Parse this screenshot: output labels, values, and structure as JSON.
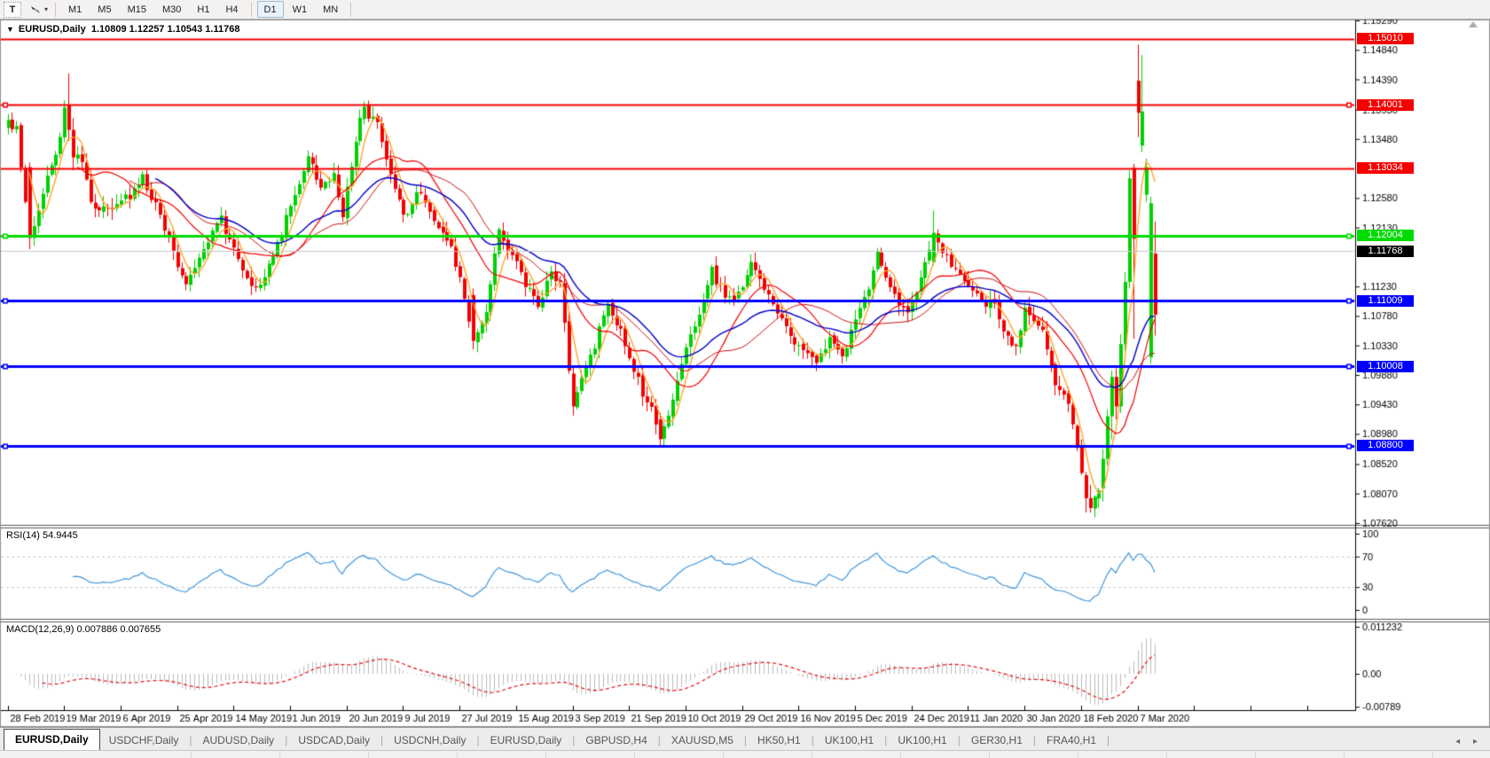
{
  "toolbar": {
    "text_tool_label": "T",
    "cursor_tool_icon": "cursor-mode-icon",
    "dropdown_caret": "▾",
    "timeframes": [
      "M1",
      "M5",
      "M15",
      "M30",
      "H1",
      "H4",
      "D1",
      "W1",
      "MN"
    ],
    "active_timeframe": "D1"
  },
  "header": {
    "dropdown_icon": "▼",
    "symbol_label": "EURUSD,Daily",
    "ohlc_label": "1.10809 1.12257 1.10543 1.11768"
  },
  "chart_data": {
    "type": "candlestick",
    "symbol": "EURUSD",
    "timeframe": "Daily",
    "last_bar": {
      "open": 1.10809,
      "high": 1.12257,
      "low": 1.10543,
      "close": 1.11768
    },
    "price_axis_ticks": [
      "1.15290",
      "1.14840",
      "1.14390",
      "1.13930",
      "1.13480",
      "1.12580",
      "1.12130",
      "1.11230",
      "1.10780",
      "1.10330",
      "1.09880",
      "1.09430",
      "1.08980",
      "1.08520",
      "1.08070",
      "1.07620"
    ],
    "price_axis_range": {
      "max": 1.1529,
      "min": 1.0762
    },
    "levels": [
      {
        "price": 1.1501,
        "label": "1.15010",
        "color": "#f40000",
        "width": 2,
        "handles": false
      },
      {
        "price": 1.14001,
        "label": "1.14001",
        "color": "#f40000",
        "width": 2,
        "handles": true
      },
      {
        "price": 1.13034,
        "label": "1.13034",
        "color": "#f40000",
        "width": 2,
        "handles": false
      },
      {
        "price": 1.12004,
        "label": "1.12004",
        "color": "#00dc00",
        "width": 3,
        "handles": true
      },
      {
        "price": 1.11009,
        "label": "1.11009",
        "color": "#0000ff",
        "width": 3,
        "handles": true
      },
      {
        "price": 1.10008,
        "label": "1.10008",
        "color": "#0000ff",
        "width": 3,
        "handles": true
      },
      {
        "price": 1.088,
        "label": "1.08800",
        "color": "#0000ff",
        "width": 3,
        "handles": true
      }
    ],
    "current_price": {
      "value": 1.11768,
      "label": "1.11768",
      "line_color": "#c8c8c8",
      "label_bg": "#000000"
    },
    "date_labels": [
      "28 Feb 2019",
      "19 Mar 2019",
      "6 Apr 2019",
      "25 Apr 2019",
      "14 May 2019",
      "1 Jun 2019",
      "20 Jun 2019",
      "9 Jul 2019",
      "27 Jul 2019",
      "15 Aug 2019",
      "3 Sep 2019",
      "21 Sep 2019",
      "10 Oct 2019",
      "29 Oct 2019",
      "16 Nov 2019",
      "5 Dec 2019",
      "24 Dec 2019",
      "11 Jan 2020",
      "30 Jan 2020",
      "18 Feb 2020",
      "7 Mar 2020"
    ],
    "bars_per_date_label": 13,
    "candle_colors": {
      "up": "#00d000",
      "down": "#f20000"
    },
    "price_path_anchors": [
      [
        0,
        1.137
      ],
      [
        2,
        1.136
      ],
      [
        5,
        1.1195
      ],
      [
        8,
        1.127
      ],
      [
        11,
        1.132
      ],
      [
        13,
        1.1395
      ],
      [
        14,
        1.143
      ],
      [
        16,
        1.133
      ],
      [
        20,
        1.1235
      ],
      [
        24,
        1.1245
      ],
      [
        28,
        1.126
      ],
      [
        31,
        1.129
      ],
      [
        35,
        1.123
      ],
      [
        39,
        1.115
      ],
      [
        41,
        1.112
      ],
      [
        45,
        1.118
      ],
      [
        49,
        1.1225
      ],
      [
        53,
        1.116
      ],
      [
        57,
        1.112
      ],
      [
        61,
        1.117
      ],
      [
        65,
        1.1245
      ],
      [
        69,
        1.132
      ],
      [
        72,
        1.127
      ],
      [
        75,
        1.129
      ],
      [
        77,
        1.123
      ],
      [
        80,
        1.135
      ],
      [
        82,
        1.1395
      ],
      [
        85,
        1.137
      ],
      [
        88,
        1.13
      ],
      [
        91,
        1.1225
      ],
      [
        94,
        1.127
      ],
      [
        98,
        1.123
      ],
      [
        101,
        1.12
      ],
      [
        104,
        1.1135
      ],
      [
        107,
        1.1045
      ],
      [
        110,
        1.109
      ],
      [
        113,
        1.1205
      ],
      [
        116,
        1.117
      ],
      [
        119,
        1.113
      ],
      [
        122,
        1.1095
      ],
      [
        125,
        1.115
      ],
      [
        127,
        1.1125
      ],
      [
        130,
        1.094
      ],
      [
        132,
        1.098
      ],
      [
        135,
        1.1035
      ],
      [
        138,
        1.1095
      ],
      [
        140,
        1.107
      ],
      [
        143,
        1.1015
      ],
      [
        146,
        1.096
      ],
      [
        148,
        1.0935
      ],
      [
        150,
        1.089
      ],
      [
        153,
        1.0955
      ],
      [
        156,
        1.103
      ],
      [
        159,
        1.1075
      ],
      [
        162,
        1.1145
      ],
      [
        165,
        1.1105
      ],
      [
        169,
        1.1115
      ],
      [
        171,
        1.116
      ],
      [
        174,
        1.112
      ],
      [
        177,
        1.1075
      ],
      [
        180,
        1.105
      ],
      [
        183,
        1.1025
      ],
      [
        186,
        1.101
      ],
      [
        189,
        1.104
      ],
      [
        192,
        1.1015
      ],
      [
        195,
        1.108
      ],
      [
        198,
        1.112
      ],
      [
        200,
        1.117
      ],
      [
        203,
        1.1125
      ],
      [
        206,
        1.1085
      ],
      [
        208,
        1.1095
      ],
      [
        211,
        1.1155
      ],
      [
        213,
        1.1205
      ],
      [
        215,
        1.118
      ],
      [
        218,
        1.1145
      ],
      [
        221,
        1.112
      ],
      [
        224,
        1.11
      ],
      [
        227,
        1.1095
      ],
      [
        229,
        1.106
      ],
      [
        231,
        1.1025
      ],
      [
        233,
        1.105
      ],
      [
        234,
        1.109
      ],
      [
        236,
        1.1075
      ],
      [
        238,
        1.1055
      ],
      [
        240,
        1.1
      ],
      [
        242,
        1.096
      ],
      [
        244,
        1.0945
      ],
      [
        246,
        1.087
      ],
      [
        248,
        1.08
      ],
      [
        249,
        1.0785
      ],
      [
        250,
        1.08
      ],
      [
        251,
        1.0815
      ]
    ],
    "candle_overrides": {
      "5": [
        1.1305,
        1.1312,
        1.118,
        1.1197
      ],
      "6": [
        1.1197,
        1.123,
        1.1185,
        1.1215
      ],
      "14": [
        1.14,
        1.1448,
        1.1345,
        1.1362
      ],
      "15": [
        1.1362,
        1.138,
        1.13,
        1.132
      ],
      "107": [
        1.111,
        1.112,
        1.1027,
        1.104
      ],
      "130": [
        1.099,
        1.1,
        1.0926,
        1.094
      ],
      "150": [
        1.092,
        1.093,
        1.0879,
        1.089
      ],
      "213": [
        1.116,
        1.1239,
        1.1155,
        1.1205
      ],
      "248": [
        1.0835,
        1.084,
        1.0778,
        1.08
      ],
      "249": [
        1.08,
        1.082,
        1.0778,
        1.0785
      ],
      "252": [
        1.0815,
        1.0875,
        1.0795,
        1.086
      ],
      "253": [
        1.086,
        1.0935,
        1.085,
        1.0925
      ],
      "254": [
        1.0925,
        1.0995,
        1.089,
        1.0985
      ],
      "255": [
        1.0985,
        1.0998,
        1.092,
        1.094
      ],
      "256": [
        1.094,
        1.105,
        1.093,
        1.1035
      ],
      "257": [
        1.1035,
        1.1145,
        1.1025,
        1.113
      ],
      "258": [
        1.113,
        1.13,
        1.112,
        1.1288
      ],
      "259": [
        1.1304,
        1.131,
        1.1043,
        1.1196
      ],
      "260": [
        1.1437,
        1.1492,
        1.1351,
        1.1388
      ],
      "261": [
        1.1338,
        1.1476,
        1.1328,
        1.139
      ],
      "262": [
        1.1263,
        1.1318,
        1.1252,
        1.1305
      ],
      "263": [
        1.1015,
        1.126,
        1.1005,
        1.125
      ],
      "264": [
        1.1173,
        1.1222,
        1.1048,
        1.108
      ]
    },
    "bar_count": 265,
    "moving_averages": [
      {
        "type": "sma",
        "period": 5,
        "color": "#ffa52b",
        "width": 1.4,
        "name": "MA-fast-orange"
      },
      {
        "type": "sma",
        "period": 16,
        "color": "#f40000",
        "width": 1.2,
        "name": "MA-mid-red"
      },
      {
        "type": "sma",
        "period": 28,
        "color": "#d01010",
        "width": 1.0,
        "name": "MA-slow-red"
      },
      {
        "type": "ema",
        "period": 34,
        "color": "#0000c8",
        "width": 1.4,
        "name": "MA-blue"
      }
    ],
    "rsi": {
      "display": "RSI(14) 54.9445",
      "period": 14,
      "value": 54.9445,
      "axis_labels": [
        {
          "v": 100,
          "t": "100"
        },
        {
          "v": 70,
          "t": "70"
        },
        {
          "v": 30,
          "t": "30"
        },
        {
          "v": 0,
          "t": "0"
        }
      ],
      "dashed_levels": [
        70,
        30
      ],
      "line_color": "#3e97dc",
      "level_color": "#c8c8c8"
    },
    "macd": {
      "display": "MACD(12,26,9) 0.007886 0.007655",
      "fast": 12,
      "slow": 26,
      "signal": 9,
      "macd_value": 0.007886,
      "signal_value": 0.007655,
      "axis_labels": [
        {
          "v": 0.011232,
          "t": "0.011232"
        },
        {
          "v": 0,
          "t": "0.00"
        },
        {
          "v": -0.00789,
          "t": "-0.00789"
        }
      ],
      "hist_color": "#bdbdbd",
      "signal_color": "#e81010"
    }
  },
  "tabs": {
    "items": [
      "EURUSD,Daily",
      "USDCHF,Daily",
      "AUDUSD,Daily",
      "USDCAD,Daily",
      "USDCNH,Daily",
      "EURUSD,Daily",
      "GBPUSD,H4",
      "XAUUSD,M5",
      "HK50,H1",
      "UK100,H1",
      "UK100,H1",
      "GER30,H1",
      "FRA40,H1"
    ],
    "active_index": 0,
    "scroll_left_icon": "◂",
    "scroll_right_icon": "▸"
  }
}
